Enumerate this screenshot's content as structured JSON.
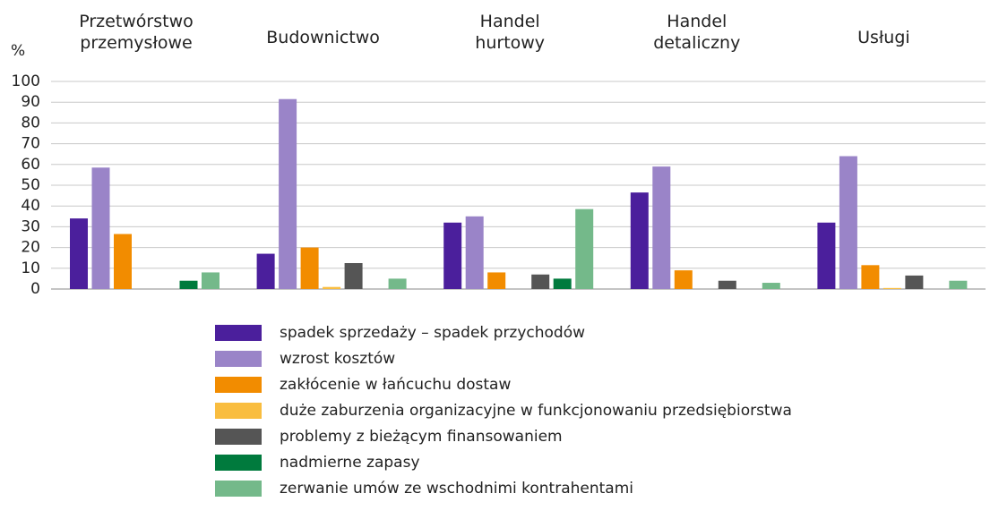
{
  "chart_data": {
    "type": "bar",
    "y_label": "%",
    "categories": [
      "Przetwórstwo\nprzemysłowe",
      "Budownictwo",
      "Handel\nhurtowy",
      "Handel\ndetaliczny",
      "Usługi"
    ],
    "series": [
      {
        "name": "spadek sprzedaży – spadek przychodów",
        "color": "#4b1f9c",
        "values": [
          34,
          17,
          32,
          46.5,
          32
        ]
      },
      {
        "name": "wzrost kosztów",
        "color": "#9a84c8",
        "values": [
          58.5,
          91.5,
          35,
          59,
          64
        ]
      },
      {
        "name": "zakłócenie w łańcuchu dostaw",
        "color": "#f28c00",
        "values": [
          26.5,
          20,
          8,
          9,
          11.5
        ]
      },
      {
        "name": "duże zaburzenia organizacyjne w funkcjonowaniu przedsiębiorstwa",
        "color": "#f9bd3f",
        "values": [
          0,
          1,
          0,
          0,
          0.5
        ]
      },
      {
        "name": "problemy z bieżącym finansowaniem",
        "color": "#555555",
        "values": [
          0,
          12.5,
          7,
          4,
          6.5
        ]
      },
      {
        "name": "nadmierne zapasy",
        "color": "#007a3d",
        "values": [
          4,
          0,
          5,
          0,
          0
        ]
      },
      {
        "name": "zerwanie umów ze wschodnimi kontrahentami",
        "color": "#74b98a",
        "values": [
          8,
          5,
          38.5,
          3,
          4
        ]
      }
    ],
    "ylim": [
      0,
      100
    ],
    "yticks": [
      0,
      10,
      20,
      30,
      40,
      50,
      60,
      70,
      80,
      90,
      100
    ],
    "grid": true
  }
}
